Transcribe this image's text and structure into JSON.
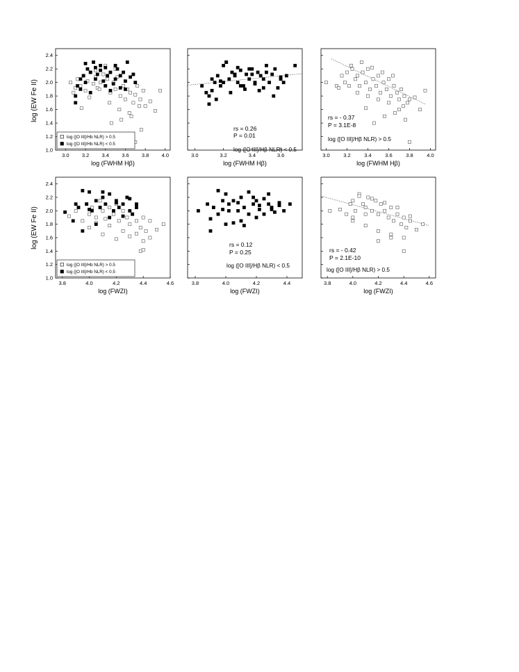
{
  "figure": {
    "ylabel": "log (EW Fe II)"
  },
  "chart_data": [
    {
      "type": "scatter",
      "panel": "top-left",
      "xlabel": "log (FWHM Hβ)",
      "ylabel": "log (EW Fe II)",
      "xlim": [
        2.9,
        4.05
      ],
      "ylim": [
        1.0,
        2.5
      ],
      "xticks": [
        "3.0",
        "3.2",
        "3.4",
        "3.6",
        "3.8",
        "4.0"
      ],
      "yticks": [
        "1.0",
        "1.2",
        "1.4",
        "1.6",
        "1.8",
        "2.0",
        "2.2",
        "2.4"
      ],
      "legend": {
        "placement": "bottom-left",
        "entries": [
          "log ([O III]/Hb NLR) > 0.5",
          "log ([O III]/Hb NLR) < 0.5"
        ]
      },
      "series": [
        {
          "marker": "open-square",
          "x": [
            3.05,
            3.1,
            3.12,
            3.15,
            3.18,
            3.2,
            3.22,
            3.25,
            3.28,
            3.3,
            3.32,
            3.35,
            3.38,
            3.4,
            3.42,
            3.45,
            3.48,
            3.5,
            3.52,
            3.55,
            3.58,
            3.6,
            3.62,
            3.65,
            3.68,
            3.7,
            3.72,
            3.75,
            3.78,
            3.8,
            3.85,
            3.9,
            3.95,
            3.08,
            3.16,
            3.24,
            3.34,
            3.44,
            3.54,
            3.64,
            3.74,
            3.46,
            3.56,
            3.66,
            3.76,
            3.6,
            3.7,
            3.5,
            3.4,
            3.3
          ],
          "y": [
            2.0,
            1.92,
            2.05,
            1.95,
            2.1,
            1.88,
            2.02,
            2.15,
            1.98,
            2.08,
            1.92,
            2.0,
            2.12,
            1.95,
            2.05,
            1.85,
            2.0,
            1.9,
            2.08,
            1.8,
            1.95,
            1.75,
            1.9,
            1.85,
            1.7,
            1.82,
            1.95,
            1.75,
            1.88,
            1.65,
            1.72,
            1.58,
            1.88,
            1.85,
            1.62,
            1.78,
            1.9,
            1.7,
            1.6,
            1.55,
            1.65,
            1.4,
            1.45,
            1.5,
            1.3,
            1.22,
            1.12,
            2.2,
            2.25,
            2.18
          ]
        },
        {
          "marker": "filled-square",
          "x": [
            3.1,
            3.12,
            3.15,
            3.18,
            3.2,
            3.22,
            3.25,
            3.28,
            3.3,
            3.32,
            3.35,
            3.38,
            3.4,
            3.42,
            3.45,
            3.48,
            3.5,
            3.52,
            3.55,
            3.58,
            3.6,
            3.62,
            3.65,
            3.68,
            3.7,
            3.15,
            3.25,
            3.35,
            3.45,
            3.55,
            3.2,
            3.3,
            3.4,
            3.5,
            3.1,
            3.6
          ],
          "y": [
            1.8,
            1.95,
            2.05,
            2.1,
            2.0,
            2.2,
            2.15,
            2.3,
            2.05,
            2.12,
            2.18,
            2.02,
            2.22,
            2.1,
            2.15,
            1.98,
            2.05,
            2.2,
            2.1,
            2.15,
            2.02,
            2.3,
            2.08,
            2.12,
            2.0,
            1.9,
            1.85,
            2.25,
            1.88,
            1.92,
            2.28,
            2.22,
            1.95,
            2.25,
            1.7,
            1.9
          ]
        }
      ]
    },
    {
      "type": "scatter",
      "panel": "top-middle",
      "xlabel": "log (FWHM Hβ)",
      "xlim": [
        2.95,
        3.75
      ],
      "ylim": [
        1.0,
        2.5
      ],
      "xticks": [
        "3.0",
        "3.2",
        "3.4",
        "3.6"
      ],
      "annotations": [
        "rs = 0.26",
        "P = 0.01",
        "log ([O III]/Hβ NLR) < 0.5"
      ],
      "trend": {
        "x": [
          2.95,
          3.75
        ],
        "y": [
          1.96,
          2.13
        ]
      },
      "series": [
        {
          "marker": "filled-square",
          "x": [
            3.05,
            3.08,
            3.1,
            3.12,
            3.14,
            3.16,
            3.18,
            3.2,
            3.22,
            3.24,
            3.26,
            3.28,
            3.3,
            3.32,
            3.34,
            3.36,
            3.38,
            3.4,
            3.42,
            3.44,
            3.46,
            3.48,
            3.5,
            3.52,
            3.54,
            3.56,
            3.58,
            3.6,
            3.62,
            3.64,
            3.7,
            3.1,
            3.15,
            3.25,
            3.35,
            3.45,
            3.55,
            3.2,
            3.3,
            3.4,
            3.5,
            3.6,
            3.22,
            3.32,
            3.42,
            3.12,
            3.18,
            3.28,
            3.38,
            3.48
          ],
          "y": [
            1.95,
            1.85,
            1.8,
            2.05,
            2.0,
            2.1,
            1.95,
            2.0,
            2.3,
            2.05,
            2.15,
            2.1,
            2.0,
            2.18,
            1.95,
            2.12,
            2.05,
            2.2,
            2.0,
            2.15,
            2.1,
            2.05,
            2.25,
            2.0,
            2.12,
            2.2,
            1.92,
            2.05,
            2.0,
            2.1,
            2.25,
            1.68,
            1.75,
            1.85,
            1.9,
            1.88,
            1.8,
            2.25,
            2.22,
            2.12,
            2.15,
            2.08,
            2.3,
            1.95,
            1.98,
            1.88,
            2.02,
            2.12,
            2.2,
            1.92
          ]
        }
      ]
    },
    {
      "type": "scatter",
      "panel": "top-right",
      "xlabel": "log (FWHM Hβ)",
      "xlim": [
        2.95,
        4.05
      ],
      "ylim": [
        1.0,
        2.5
      ],
      "xticks": [
        "3.0",
        "3.2",
        "3.4",
        "3.6",
        "3.8",
        "4.0"
      ],
      "annotations": [
        "rs = - 0.37",
        "P = 3.1E-8",
        "log ([O III]/Hβ NLR) > 0.5"
      ],
      "trend": {
        "x": [
          3.05,
          3.95
        ],
        "y": [
          2.35,
          1.68
        ]
      },
      "series": [
        {
          "marker": "open-square",
          "x": [
            3.0,
            3.1,
            3.15,
            3.18,
            3.2,
            3.22,
            3.25,
            3.28,
            3.3,
            3.32,
            3.35,
            3.38,
            3.4,
            3.42,
            3.45,
            3.48,
            3.5,
            3.52,
            3.55,
            3.58,
            3.6,
            3.62,
            3.65,
            3.68,
            3.7,
            3.72,
            3.75,
            3.78,
            3.8,
            3.85,
            3.9,
            3.95,
            3.12,
            3.24,
            3.34,
            3.44,
            3.54,
            3.64,
            3.74,
            3.3,
            3.4,
            3.5,
            3.6,
            3.7,
            3.56,
            3.66,
            3.76,
            3.8,
            3.46,
            3.38
          ],
          "y": [
            2.0,
            1.95,
            2.1,
            2.0,
            2.15,
            1.95,
            2.2,
            2.05,
            2.1,
            1.95,
            2.15,
            2.0,
            2.2,
            1.9,
            2.05,
            1.95,
            2.1,
            1.85,
            2.0,
            1.9,
            2.05,
            1.8,
            1.95,
            1.85,
            1.75,
            1.9,
            1.8,
            1.7,
            1.75,
            1.78,
            1.6,
            1.88,
            1.92,
            2.25,
            2.3,
            2.22,
            2.15,
            2.1,
            1.65,
            1.85,
            1.8,
            1.75,
            1.7,
            1.6,
            1.5,
            1.55,
            1.45,
            1.12,
            1.4,
            1.62
          ]
        }
      ]
    },
    {
      "type": "scatter",
      "panel": "bottom-left",
      "xlabel": "log (FWZI)",
      "ylabel": "log (EW Fe II)",
      "xlim": [
        3.75,
        4.6
      ],
      "ylim": [
        1.0,
        2.5
      ],
      "xticks": [
        "3.8",
        "4.0",
        "4.2",
        "4.4",
        "4.6"
      ],
      "yticks": [
        "1.0",
        "1.2",
        "1.4",
        "1.6",
        "1.8",
        "2.0",
        "2.2",
        "2.4"
      ],
      "legend": {
        "placement": "bottom-left",
        "entries": [
          "log ([O III]/Hb NLR) > 0.5",
          "log ([O III]/Hb NLR) < 0.5"
        ]
      },
      "series": [
        {
          "marker": "open-square",
          "x": [
            3.85,
            3.9,
            3.95,
            3.98,
            4.0,
            4.02,
            4.05,
            4.08,
            4.1,
            4.12,
            4.15,
            4.18,
            4.2,
            4.22,
            4.25,
            4.28,
            4.3,
            4.32,
            4.35,
            4.38,
            4.4,
            4.42,
            4.45,
            4.5,
            4.55,
            4.0,
            4.1,
            4.2,
            4.3,
            4.4,
            4.05,
            4.15,
            4.25,
            4.35,
            4.45,
            4.38,
            4.4,
            4.3
          ],
          "y": [
            1.92,
            2.0,
            1.85,
            2.1,
            1.95,
            2.05,
            1.9,
            2.15,
            2.0,
            1.88,
            2.05,
            1.95,
            2.1,
            1.85,
            2.0,
            1.9,
            1.8,
            1.95,
            1.85,
            1.75,
            1.9,
            1.7,
            1.6,
            1.72,
            1.8,
            1.75,
            1.65,
            1.58,
            1.62,
            1.55,
            1.82,
            1.78,
            1.7,
            1.66,
            1.85,
            1.4,
            1.42,
            1.12
          ]
        },
        {
          "marker": "filled-square",
          "x": [
            3.82,
            3.88,
            3.92,
            3.95,
            3.98,
            4.0,
            4.02,
            4.05,
            4.08,
            4.1,
            4.12,
            4.15,
            4.18,
            4.2,
            4.22,
            4.25,
            4.28,
            4.3,
            4.32,
            4.35,
            3.95,
            4.05,
            4.15,
            4.25,
            4.35,
            3.9,
            4.0,
            4.1,
            4.2,
            4.3
          ],
          "y": [
            1.98,
            1.85,
            2.05,
            2.3,
            2.1,
            2.28,
            2.0,
            2.15,
            2.05,
            2.2,
            2.1,
            2.25,
            2.0,
            2.15,
            2.05,
            2.1,
            2.2,
            2.0,
            1.95,
            2.05,
            1.7,
            1.8,
            1.9,
            1.92,
            2.1,
            2.1,
            2.02,
            2.28,
            2.12,
            2.18
          ]
        }
      ]
    },
    {
      "type": "scatter",
      "panel": "bottom-middle",
      "xlabel": "log (FWZI)",
      "xlim": [
        3.75,
        4.5
      ],
      "ylim": [
        1.0,
        2.5
      ],
      "xticks": [
        "3.8",
        "4.0",
        "4.2",
        "4.4"
      ],
      "annotations": [
        "rs = 0.12",
        "P = 0.25",
        "log ([O III]/Hβ NLR) < 0.5"
      ],
      "series": [
        {
          "marker": "filled-square",
          "x": [
            3.82,
            3.88,
            3.9,
            3.92,
            3.95,
            3.98,
            4.0,
            4.02,
            4.05,
            4.08,
            4.1,
            4.12,
            4.15,
            4.18,
            4.2,
            4.22,
            4.25,
            4.28,
            4.3,
            4.32,
            4.35,
            4.38,
            4.42,
            3.9,
            4.0,
            4.1,
            4.2,
            4.3,
            3.95,
            4.05,
            4.15,
            4.25,
            4.35,
            3.98,
            4.08,
            4.18,
            4.28,
            4.12,
            4.22,
            4.02
          ],
          "y": [
            2.0,
            2.1,
            1.88,
            2.05,
            2.3,
            2.02,
            2.25,
            2.1,
            2.15,
            2.0,
            2.2,
            2.05,
            2.28,
            2.1,
            2.15,
            2.02,
            2.18,
            2.1,
            2.05,
            1.98,
            2.12,
            2.0,
            2.1,
            1.7,
            1.8,
            1.85,
            1.9,
            2.02,
            1.95,
            1.82,
            1.95,
            1.95,
            2.08,
            2.15,
            2.12,
            2.2,
            2.25,
            1.78,
            2.08,
            2.0
          ]
        }
      ]
    },
    {
      "type": "scatter",
      "panel": "bottom-right",
      "xlabel": "log (FWZI)",
      "xlim": [
        3.75,
        4.65
      ],
      "ylim": [
        1.0,
        2.5
      ],
      "xticks": [
        "3.8",
        "4.0",
        "4.2",
        "4.4",
        "4.6"
      ],
      "annotations": [
        "rs = - 0.42",
        "P = 2.1E-10",
        "log ([O III]/Hβ NLR) > 0.5"
      ],
      "trend": {
        "x": [
          3.75,
          4.6
        ],
        "y": [
          2.22,
          1.78
        ]
      },
      "series": [
        {
          "marker": "open-square",
          "x": [
            3.82,
            3.9,
            3.95,
            3.98,
            4.0,
            4.02,
            4.05,
            4.08,
            4.1,
            4.12,
            4.15,
            4.18,
            4.2,
            4.22,
            4.25,
            4.28,
            4.3,
            4.32,
            4.35,
            4.38,
            4.4,
            4.42,
            4.45,
            4.5,
            4.55,
            4.0,
            4.1,
            4.2,
            4.3,
            4.4,
            4.05,
            4.15,
            4.25,
            4.35,
            4.45,
            4.4,
            4.3,
            4.2,
            4.0,
            4.1
          ],
          "y": [
            2.0,
            2.02,
            1.95,
            2.1,
            2.15,
            2.0,
            2.25,
            2.1,
            2.05,
            2.2,
            2.0,
            2.15,
            1.95,
            2.1,
            2.0,
            1.9,
            2.05,
            1.85,
            1.95,
            1.8,
            1.9,
            1.75,
            1.85,
            1.72,
            1.8,
            1.85,
            1.78,
            1.7,
            1.65,
            1.6,
            2.22,
            2.18,
            2.12,
            2.05,
            1.92,
            1.4,
            1.6,
            1.55,
            1.9,
            1.95
          ]
        }
      ]
    }
  ]
}
